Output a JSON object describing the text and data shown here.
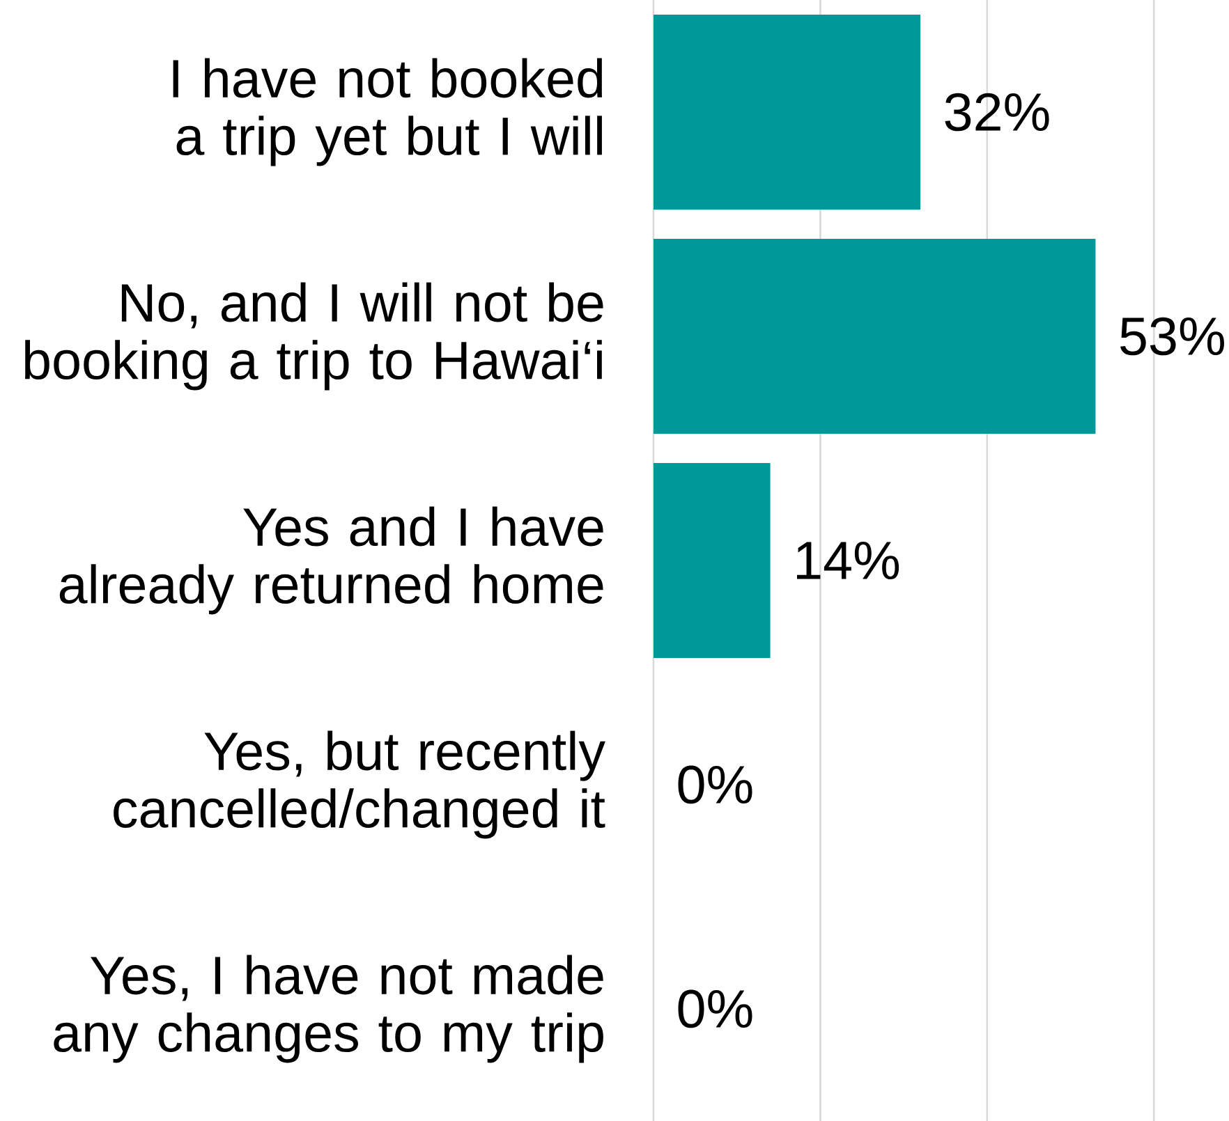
{
  "chart_data": {
    "type": "bar",
    "orientation": "horizontal",
    "categories": [
      "I have not booked a trip yet but I will",
      "No, and I will not be booking a trip to Hawai‘i",
      "Yes and I have already returned home",
      "Yes, but recently cancelled/changed it",
      "Yes, I have not made any changes to my trip"
    ],
    "values": [
      32,
      53,
      14,
      0,
      0
    ],
    "value_labels": [
      "32%",
      "53%",
      "14%",
      "0%",
      "0%"
    ],
    "color": "#009999",
    "ref_lines": [
      {
        "axis": "x",
        "value": 0,
        "color": "#d9d9d9"
      },
      {
        "axis": "x",
        "value": 20,
        "color": "#d9d9d9"
      },
      {
        "axis": "x",
        "value": 40,
        "color": "#d9d9d9"
      },
      {
        "axis": "x",
        "value": 60,
        "color": "#d9d9d9"
      }
    ]
  }
}
